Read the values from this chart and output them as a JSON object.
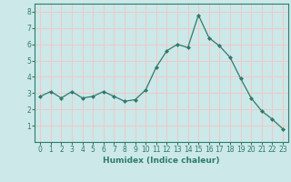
{
  "x": [
    0,
    1,
    2,
    3,
    4,
    5,
    6,
    7,
    8,
    9,
    10,
    11,
    12,
    13,
    14,
    15,
    16,
    17,
    18,
    19,
    20,
    21,
    22,
    23
  ],
  "y": [
    2.8,
    3.1,
    2.7,
    3.1,
    2.7,
    2.8,
    3.1,
    2.8,
    2.5,
    2.6,
    3.2,
    4.6,
    5.6,
    6.0,
    5.8,
    7.8,
    6.4,
    5.9,
    5.2,
    3.9,
    2.7,
    1.9,
    1.4,
    0.8
  ],
  "line_color": "#2e7b6e",
  "marker": "D",
  "marker_size": 2,
  "bg_color": "#cce8e8",
  "grid_color": "#f0c8c8",
  "xlabel": "Humidex (Indice chaleur)",
  "xlim": [
    -0.5,
    23.5
  ],
  "ylim": [
    0,
    8.5
  ],
  "yticks": [
    1,
    2,
    3,
    4,
    5,
    6,
    7,
    8
  ],
  "xticks": [
    0,
    1,
    2,
    3,
    4,
    5,
    6,
    7,
    8,
    9,
    10,
    11,
    12,
    13,
    14,
    15,
    16,
    17,
    18,
    19,
    20,
    21,
    22,
    23
  ],
  "tick_fontsize": 5.5,
  "xlabel_fontsize": 6.5,
  "spine_color": "#2e7b6e",
  "label_color": "#2e7b6e",
  "tick_color": "#2e7b6e"
}
